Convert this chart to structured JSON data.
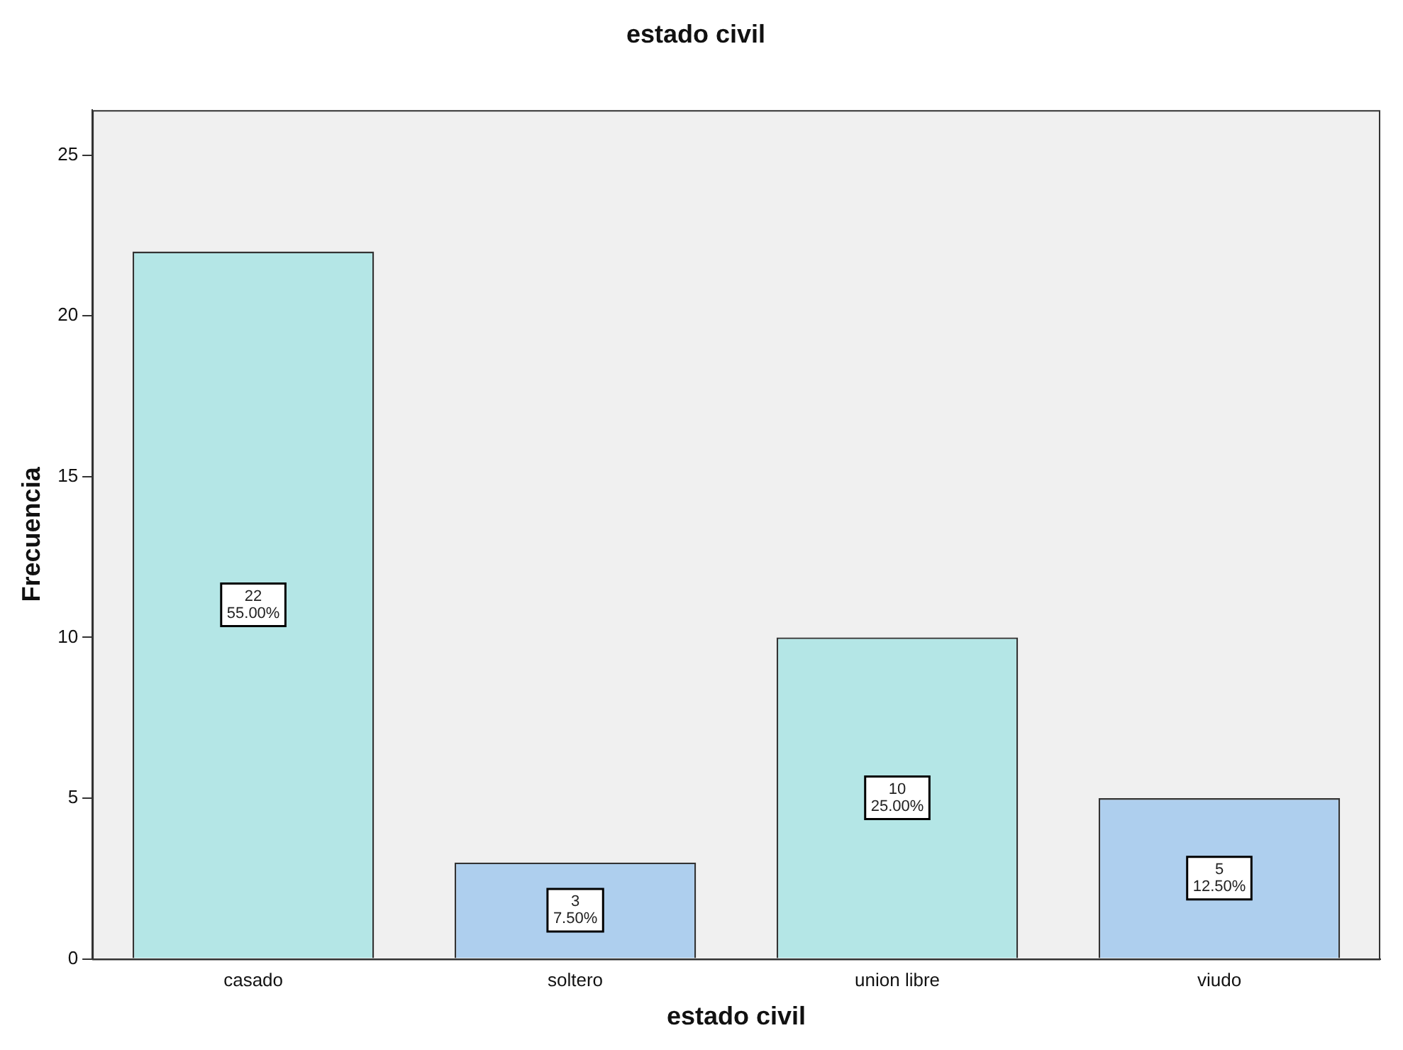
{
  "chart_data": {
    "type": "bar",
    "title": "estado civil",
    "xlabel": "estado civil",
    "ylabel": "Frecuencia",
    "categories": [
      "casado",
      "soltero",
      "union libre",
      "viudo"
    ],
    "values": [
      22,
      3,
      10,
      5
    ],
    "colors": [
      "#b4e6e6",
      "#aecfee",
      "#b4e6e6",
      "#aecfee"
    ],
    "value_labels": [
      "22\n55.00%",
      "3\n7.50%",
      "10\n25.00%",
      "5\n12.50%"
    ],
    "ylim": [
      0,
      26.4
    ],
    "yticks": [
      0,
      5,
      10,
      15,
      20,
      25
    ],
    "grid": false,
    "legend": false
  }
}
